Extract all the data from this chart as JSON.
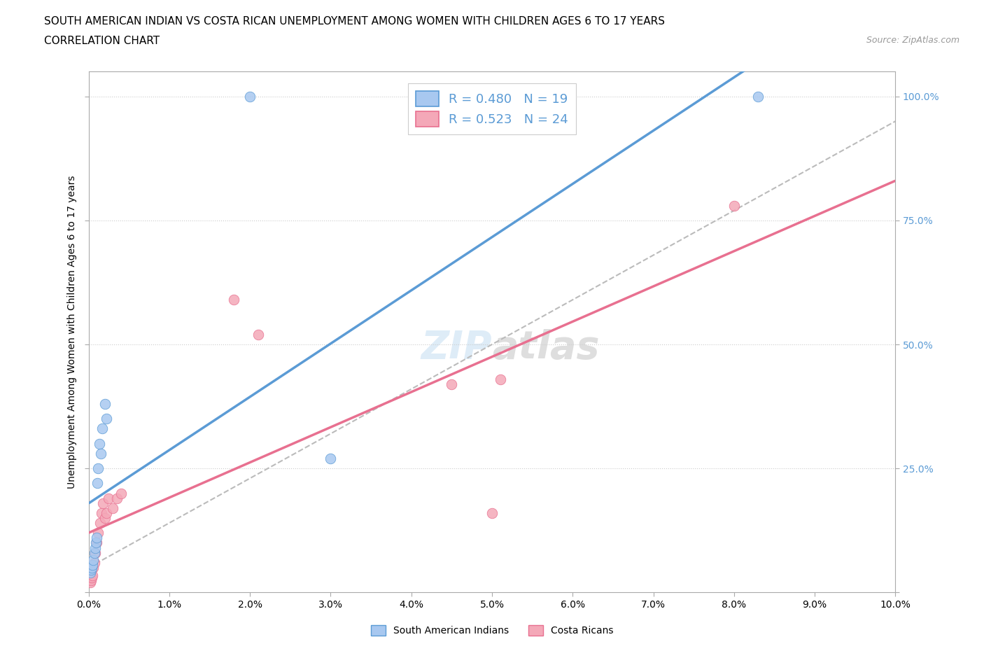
{
  "title_line1": "SOUTH AMERICAN INDIAN VS COSTA RICAN UNEMPLOYMENT AMONG WOMEN WITH CHILDREN AGES 6 TO 17 YEARS",
  "title_line2": "CORRELATION CHART",
  "source_text": "Source: ZipAtlas.com",
  "ylabel": "Unemployment Among Women with Children Ages 6 to 17 years",
  "xlim": [
    0.0,
    0.1
  ],
  "ylim": [
    0.0,
    1.05
  ],
  "color_blue": "#A8C8F0",
  "color_pink": "#F4A8B8",
  "color_blue_line": "#5B9BD5",
  "color_pink_line": "#E87090",
  "color_gray_dashed": "#BBBBBB",
  "R_blue": 0.48,
  "N_blue": 19,
  "R_pink": 0.523,
  "N_pink": 24,
  "legend_label_blue": "South American Indians",
  "legend_label_pink": "Costa Ricans",
  "watermark": "ZIPatlas",
  "blue_x": [
    0.0002,
    0.0003,
    0.0004,
    0.0005,
    0.0006,
    0.0007,
    0.0008,
    0.0009,
    0.001,
    0.0011,
    0.0012,
    0.0013,
    0.0015,
    0.0017,
    0.002,
    0.0022,
    0.02,
    0.03,
    0.083
  ],
  "blue_y": [
    0.04,
    0.045,
    0.05,
    0.055,
    0.065,
    0.08,
    0.09,
    0.1,
    0.11,
    0.22,
    0.25,
    0.3,
    0.28,
    0.33,
    0.38,
    0.35,
    1.0,
    0.27,
    1.0
  ],
  "pink_x": [
    0.0002,
    0.0003,
    0.0004,
    0.0005,
    0.0006,
    0.0007,
    0.0008,
    0.001,
    0.0012,
    0.0014,
    0.0016,
    0.0018,
    0.002,
    0.0022,
    0.0025,
    0.003,
    0.0035,
    0.004,
    0.018,
    0.021,
    0.045,
    0.05,
    0.051,
    0.08
  ],
  "pink_y": [
    0.02,
    0.025,
    0.03,
    0.035,
    0.05,
    0.06,
    0.08,
    0.1,
    0.12,
    0.14,
    0.16,
    0.18,
    0.15,
    0.16,
    0.19,
    0.17,
    0.19,
    0.2,
    0.59,
    0.52,
    0.42,
    0.16,
    0.43,
    0.78
  ],
  "title_fontsize": 11,
  "subtitle_fontsize": 11,
  "source_fontsize": 9,
  "axis_label_fontsize": 10,
  "tick_fontsize": 10,
  "legend_fontsize": 13,
  "watermark_fontsize": 40
}
